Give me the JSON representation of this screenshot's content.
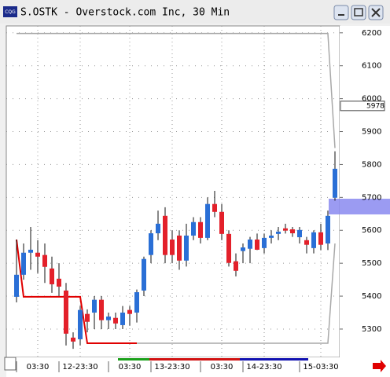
{
  "window": {
    "icon": "CQG",
    "title": "S.OSTK - Overstock.com Inc, 30 Min"
  },
  "chart_data": {
    "type": "candlestick",
    "up_color": "#2a6fd6",
    "down_color": "#e3202a",
    "ylim": [
      5214,
      6221
    ],
    "yticks": [
      5300,
      5400,
      5500,
      5600,
      5700,
      5800,
      5900,
      6000,
      6100,
      6200
    ],
    "grid": true,
    "last_price": 5978,
    "xticks": [
      {
        "value": 3,
        "label": "03:30"
      },
      {
        "value": 9,
        "label": "12-23:30"
      },
      {
        "value": 16,
        "label": "03:30"
      },
      {
        "value": 22,
        "label": "13-23:30"
      },
      {
        "value": 29,
        "label": "03:30"
      },
      {
        "value": 35,
        "label": "14-23:30"
      },
      {
        "value": 43,
        "label": "15-03:30"
      }
    ],
    "ohlc": [
      [
        5398,
        5572,
        5381,
        5465
      ],
      [
        5465,
        5560,
        5450,
        5532
      ],
      [
        5532,
        5610,
        5480,
        5541
      ],
      [
        5532,
        5570,
        5470,
        5520
      ],
      [
        5525,
        5560,
        5440,
        5489
      ],
      [
        5484,
        5520,
        5410,
        5436
      ],
      [
        5453,
        5500,
        5400,
        5429
      ],
      [
        5417,
        5440,
        5250,
        5286
      ],
      [
        5274,
        5290,
        5240,
        5262
      ],
      [
        5269,
        5370,
        5250,
        5358
      ],
      [
        5346,
        5360,
        5290,
        5322
      ],
      [
        5350,
        5400,
        5300,
        5389
      ],
      [
        5389,
        5400,
        5300,
        5327
      ],
      [
        5327,
        5350,
        5300,
        5338
      ],
      [
        5334,
        5350,
        5300,
        5317
      ],
      [
        5312,
        5370,
        5300,
        5350
      ],
      [
        5358,
        5370,
        5310,
        5346
      ],
      [
        5350,
        5420,
        5320,
        5412
      ],
      [
        5417,
        5520,
        5400,
        5513
      ],
      [
        5525,
        5600,
        5500,
        5591
      ],
      [
        5591,
        5660,
        5570,
        5620
      ],
      [
        5644,
        5670,
        5500,
        5525
      ],
      [
        5572,
        5600,
        5500,
        5525
      ],
      [
        5584,
        5600,
        5480,
        5508
      ],
      [
        5508,
        5620,
        5490,
        5584
      ],
      [
        5584,
        5640,
        5570,
        5625
      ],
      [
        5625,
        5640,
        5560,
        5577
      ],
      [
        5577,
        5700,
        5570,
        5680
      ],
      [
        5680,
        5720,
        5640,
        5656
      ],
      [
        5656,
        5680,
        5570,
        5589
      ],
      [
        5589,
        5600,
        5490,
        5501
      ],
      [
        5506,
        5530,
        5460,
        5477
      ],
      [
        5537,
        5560,
        5500,
        5548
      ],
      [
        5544,
        5580,
        5500,
        5572
      ],
      [
        5572,
        5590,
        5540,
        5541
      ],
      [
        5546,
        5590,
        5530,
        5577
      ],
      [
        5577,
        5600,
        5560,
        5584
      ],
      [
        5589,
        5610,
        5570,
        5596
      ],
      [
        5606,
        5620,
        5590,
        5599
      ],
      [
        5603,
        5610,
        5580,
        5591
      ],
      [
        5579,
        5610,
        5560,
        5601
      ],
      [
        5570,
        5580,
        5530,
        5556
      ],
      [
        5546,
        5600,
        5530,
        5594
      ],
      [
        5594,
        5620,
        5540,
        5556
      ],
      [
        5560,
        5660,
        5540,
        5644
      ],
      [
        5699,
        5840,
        5690,
        5787
      ]
    ],
    "lines": [
      {
        "color": "#e00000",
        "values": [
          5572,
          5398,
          5398,
          5398,
          5398,
          5398,
          5398,
          5398,
          5398,
          5398,
          5257,
          5257,
          5257,
          5257,
          5257,
          5257,
          5257,
          5257,
          null,
          null,
          null,
          null,
          null,
          null,
          null,
          null,
          null,
          null,
          null,
          null,
          null,
          null,
          null,
          null,
          null,
          null,
          null,
          null,
          null,
          null,
          null,
          null,
          null,
          null,
          null,
          null
        ]
      },
      {
        "color": "#a8a8a8",
        "values": [
          null,
          null,
          null,
          null,
          null,
          null,
          null,
          null,
          null,
          null,
          null,
          null,
          null,
          null,
          null,
          null,
          null,
          5257,
          5257,
          5257,
          5257,
          5257,
          5257,
          5257,
          5257,
          5257,
          5257,
          5257,
          5257,
          5257,
          5257,
          5257,
          5257,
          5257,
          5257,
          5257,
          5257,
          5257,
          5257,
          5257,
          5257,
          5257,
          5257,
          5257,
          5257,
          5560
        ]
      },
      {
        "color": "#a8a8a8",
        "values": [
          6198,
          6198,
          6198,
          6198,
          6198,
          6198,
          6198,
          6198,
          6198,
          6198,
          6198,
          6198,
          6198,
          6198,
          6198,
          6198,
          6198,
          6198,
          6198,
          6198,
          6198,
          6198,
          6198,
          6198,
          6198,
          6198,
          6198,
          6198,
          6198,
          6198,
          6198,
          6198,
          6198,
          6198,
          6198,
          6198,
          6198,
          6198,
          6198,
          6198,
          6198,
          6198,
          6198,
          6198,
          6198,
          5850
        ]
      }
    ]
  }
}
